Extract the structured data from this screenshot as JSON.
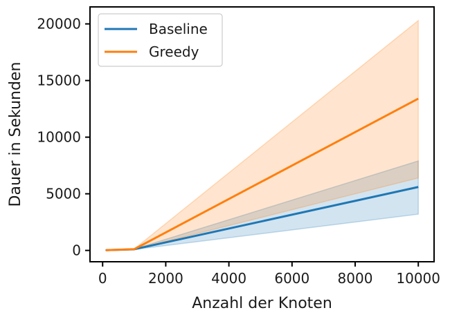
{
  "chart_data": {
    "type": "line",
    "title": "",
    "xlabel": "Anzahl der Knoten",
    "ylabel": "Dauer in Sekunden",
    "xlim": [
      -400,
      10500
    ],
    "ylim": [
      -1000,
      21500
    ],
    "x_ticks": [
      0,
      2000,
      4000,
      6000,
      8000,
      10000
    ],
    "y_ticks": [
      0,
      5000,
      10000,
      15000,
      20000
    ],
    "grid": false,
    "legend_position": "top-left",
    "series": [
      {
        "name": "Baseline",
        "color": "#1f77b4",
        "x": [
          100,
          1000,
          10000
        ],
        "y": [
          20,
          100,
          5600
        ],
        "lower": [
          15,
          80,
          3200
        ],
        "upper": [
          25,
          120,
          7900
        ]
      },
      {
        "name": "Greedy",
        "color": "#ff7f0e",
        "x": [
          100,
          1000,
          10000
        ],
        "y": [
          25,
          110,
          13400
        ],
        "lower": [
          20,
          90,
          6400
        ],
        "upper": [
          30,
          130,
          20300
        ]
      }
    ]
  }
}
